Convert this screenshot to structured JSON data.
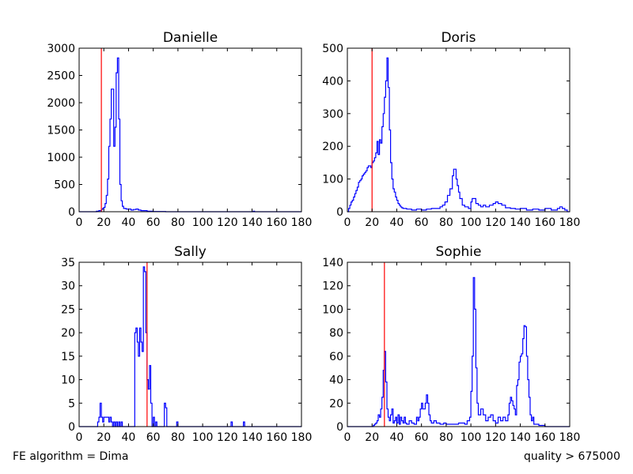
{
  "footer": {
    "left": "FE algorithm = Dima",
    "right": "quality > 675000"
  },
  "colors": {
    "histogram": "#0000ff",
    "marker": "#ff0000",
    "axes": "#000000"
  },
  "chart_data": [
    {
      "type": "histogram",
      "title": "Danielle",
      "xlim": [
        0,
        180
      ],
      "ylim": [
        0,
        3000
      ],
      "xticks": [
        0,
        20,
        40,
        60,
        80,
        100,
        120,
        140,
        160,
        180
      ],
      "yticks": [
        0,
        500,
        1000,
        1500,
        2000,
        2500,
        3000
      ],
      "bin_width": 1,
      "marker_x": 18,
      "points": [
        [
          0,
          0
        ],
        [
          12,
          0
        ],
        [
          14,
          10
        ],
        [
          16,
          20
        ],
        [
          18,
          40
        ],
        [
          19,
          60
        ],
        [
          20,
          80
        ],
        [
          21,
          150
        ],
        [
          22,
          300
        ],
        [
          23,
          600
        ],
        [
          24,
          1200
        ],
        [
          25,
          1700
        ],
        [
          26,
          2250
        ],
        [
          27,
          2250
        ],
        [
          28,
          1200
        ],
        [
          29,
          1550
        ],
        [
          30,
          2550
        ],
        [
          31,
          2820
        ],
        [
          32,
          1700
        ],
        [
          33,
          500
        ],
        [
          34,
          200
        ],
        [
          35,
          100
        ],
        [
          36,
          60
        ],
        [
          38,
          50
        ],
        [
          40,
          50
        ],
        [
          42,
          30
        ],
        [
          44,
          40
        ],
        [
          46,
          50
        ],
        [
          48,
          30
        ],
        [
          50,
          20
        ],
        [
          55,
          10
        ],
        [
          60,
          5
        ],
        [
          70,
          0
        ],
        [
          140,
          0
        ],
        [
          141,
          10
        ],
        [
          142,
          0
        ],
        [
          180,
          0
        ]
      ]
    },
    {
      "type": "histogram",
      "title": "Doris",
      "xlim": [
        0,
        180
      ],
      "ylim": [
        0,
        500
      ],
      "xticks": [
        0,
        20,
        40,
        60,
        80,
        100,
        120,
        140,
        160,
        180
      ],
      "yticks": [
        0,
        100,
        200,
        300,
        400,
        500
      ],
      "bin_width": 1,
      "marker_x": 20,
      "points": [
        [
          0,
          0
        ],
        [
          1,
          10
        ],
        [
          2,
          20
        ],
        [
          3,
          30
        ],
        [
          4,
          35
        ],
        [
          5,
          45
        ],
        [
          6,
          55
        ],
        [
          7,
          65
        ],
        [
          8,
          75
        ],
        [
          9,
          90
        ],
        [
          10,
          95
        ],
        [
          11,
          100
        ],
        [
          12,
          110
        ],
        [
          13,
          115
        ],
        [
          14,
          120
        ],
        [
          15,
          125
        ],
        [
          16,
          135
        ],
        [
          17,
          140
        ],
        [
          18,
          140
        ],
        [
          19,
          135
        ],
        [
          20,
          150
        ],
        [
          21,
          155
        ],
        [
          22,
          165
        ],
        [
          23,
          180
        ],
        [
          24,
          215
        ],
        [
          25,
          175
        ],
        [
          26,
          220
        ],
        [
          27,
          210
        ],
        [
          28,
          260
        ],
        [
          29,
          300
        ],
        [
          30,
          350
        ],
        [
          31,
          400
        ],
        [
          32,
          470
        ],
        [
          33,
          380
        ],
        [
          34,
          250
        ],
        [
          35,
          150
        ],
        [
          36,
          100
        ],
        [
          37,
          70
        ],
        [
          38,
          60
        ],
        [
          39,
          45
        ],
        [
          40,
          35
        ],
        [
          41,
          25
        ],
        [
          42,
          20
        ],
        [
          43,
          15
        ],
        [
          44,
          12
        ],
        [
          45,
          10
        ],
        [
          48,
          8
        ],
        [
          52,
          5
        ],
        [
          56,
          8
        ],
        [
          60,
          5
        ],
        [
          64,
          8
        ],
        [
          68,
          10
        ],
        [
          72,
          10
        ],
        [
          75,
          15
        ],
        [
          77,
          20
        ],
        [
          79,
          30
        ],
        [
          81,
          50
        ],
        [
          83,
          70
        ],
        [
          85,
          110
        ],
        [
          86,
          130
        ],
        [
          87,
          130
        ],
        [
          88,
          100
        ],
        [
          89,
          80
        ],
        [
          90,
          60
        ],
        [
          91,
          40
        ],
        [
          93,
          20
        ],
        [
          95,
          15
        ],
        [
          98,
          10
        ],
        [
          100,
          30
        ],
        [
          101,
          40
        ],
        [
          103,
          40
        ],
        [
          104,
          25
        ],
        [
          106,
          20
        ],
        [
          108,
          15
        ],
        [
          110,
          20
        ],
        [
          112,
          15
        ],
        [
          115,
          20
        ],
        [
          118,
          25
        ],
        [
          120,
          30
        ],
        [
          122,
          25
        ],
        [
          125,
          20
        ],
        [
          128,
          12
        ],
        [
          132,
          10
        ],
        [
          136,
          8
        ],
        [
          140,
          10
        ],
        [
          145,
          5
        ],
        [
          150,
          8
        ],
        [
          155,
          5
        ],
        [
          160,
          10
        ],
        [
          165,
          5
        ],
        [
          170,
          10
        ],
        [
          172,
          15
        ],
        [
          174,
          10
        ],
        [
          176,
          5
        ],
        [
          178,
          0
        ],
        [
          180,
          0
        ]
      ]
    },
    {
      "type": "histogram",
      "title": "Sally",
      "xlim": [
        0,
        180
      ],
      "ylim": [
        0,
        35
      ],
      "xticks": [
        0,
        20,
        40,
        60,
        80,
        100,
        120,
        140,
        160,
        180
      ],
      "yticks": [
        0,
        5,
        10,
        15,
        20,
        25,
        30,
        35
      ],
      "bin_width": 1,
      "marker_x": 55,
      "points": [
        [
          0,
          0
        ],
        [
          14,
          0
        ],
        [
          15,
          1
        ],
        [
          16,
          2
        ],
        [
          17,
          5
        ],
        [
          18,
          2
        ],
        [
          19,
          1
        ],
        [
          20,
          2
        ],
        [
          21,
          2
        ],
        [
          23,
          2
        ],
        [
          24,
          1
        ],
        [
          25,
          2
        ],
        [
          26,
          1
        ],
        [
          27,
          0
        ],
        [
          28,
          1
        ],
        [
          29,
          0
        ],
        [
          30,
          1
        ],
        [
          31,
          0
        ],
        [
          32,
          1
        ],
        [
          33,
          0
        ],
        [
          34,
          1
        ],
        [
          35,
          0
        ],
        [
          44,
          0
        ],
        [
          45,
          20
        ],
        [
          46,
          21
        ],
        [
          47,
          18
        ],
        [
          48,
          15
        ],
        [
          49,
          21
        ],
        [
          50,
          18
        ],
        [
          51,
          16
        ],
        [
          52,
          34
        ],
        [
          53,
          33
        ],
        [
          54,
          20
        ],
        [
          55,
          10
        ],
        [
          56,
          8
        ],
        [
          57,
          13
        ],
        [
          58,
          5
        ],
        [
          59,
          0
        ],
        [
          60,
          2
        ],
        [
          61,
          0
        ],
        [
          62,
          1
        ],
        [
          63,
          0
        ],
        [
          68,
          0
        ],
        [
          69,
          5
        ],
        [
          70,
          4
        ],
        [
          71,
          0
        ],
        [
          78,
          0
        ],
        [
          79,
          1
        ],
        [
          80,
          0
        ],
        [
          122,
          0
        ],
        [
          123,
          1
        ],
        [
          124,
          0
        ],
        [
          132,
          0
        ],
        [
          133,
          1
        ],
        [
          134,
          0
        ],
        [
          180,
          0
        ]
      ]
    },
    {
      "type": "histogram",
      "title": "Sophie",
      "xlim": [
        0,
        180
      ],
      "ylim": [
        0,
        140
      ],
      "xticks": [
        0,
        20,
        40,
        60,
        80,
        100,
        120,
        140,
        160,
        180
      ],
      "yticks": [
        0,
        20,
        40,
        60,
        80,
        100,
        120,
        140
      ],
      "bin_width": 1,
      "marker_x": 30,
      "points": [
        [
          0,
          0
        ],
        [
          20,
          0
        ],
        [
          21,
          1
        ],
        [
          22,
          2
        ],
        [
          23,
          3
        ],
        [
          24,
          5
        ],
        [
          25,
          10
        ],
        [
          26,
          8
        ],
        [
          27,
          15
        ],
        [
          28,
          25
        ],
        [
          29,
          48
        ],
        [
          30,
          64
        ],
        [
          31,
          38
        ],
        [
          32,
          15
        ],
        [
          33,
          8
        ],
        [
          34,
          5
        ],
        [
          35,
          10
        ],
        [
          36,
          15
        ],
        [
          37,
          3
        ],
        [
          38,
          5
        ],
        [
          39,
          8
        ],
        [
          40,
          3
        ],
        [
          41,
          10
        ],
        [
          42,
          2
        ],
        [
          43,
          8
        ],
        [
          44,
          5
        ],
        [
          45,
          3
        ],
        [
          46,
          8
        ],
        [
          47,
          3
        ],
        [
          48,
          2
        ],
        [
          50,
          5
        ],
        [
          52,
          3
        ],
        [
          54,
          2
        ],
        [
          56,
          8
        ],
        [
          57,
          5
        ],
        [
          58,
          8
        ],
        [
          59,
          15
        ],
        [
          60,
          20
        ],
        [
          61,
          15
        ],
        [
          62,
          15
        ],
        [
          63,
          20
        ],
        [
          64,
          27
        ],
        [
          65,
          20
        ],
        [
          66,
          10
        ],
        [
          67,
          5
        ],
        [
          68,
          3
        ],
        [
          70,
          5
        ],
        [
          72,
          3
        ],
        [
          75,
          2
        ],
        [
          78,
          3
        ],
        [
          80,
          2
        ],
        [
          85,
          2
        ],
        [
          90,
          3
        ],
        [
          95,
          2
        ],
        [
          97,
          5
        ],
        [
          99,
          8
        ],
        [
          100,
          30
        ],
        [
          101,
          60
        ],
        [
          102,
          127
        ],
        [
          103,
          100
        ],
        [
          104,
          50
        ],
        [
          105,
          20
        ],
        [
          106,
          10
        ],
        [
          108,
          15
        ],
        [
          110,
          10
        ],
        [
          112,
          5
        ],
        [
          114,
          8
        ],
        [
          116,
          10
        ],
        [
          118,
          5
        ],
        [
          120,
          3
        ],
        [
          122,
          8
        ],
        [
          124,
          5
        ],
        [
          126,
          8
        ],
        [
          128,
          5
        ],
        [
          130,
          10
        ],
        [
          131,
          20
        ],
        [
          132,
          25
        ],
        [
          133,
          22
        ],
        [
          134,
          18
        ],
        [
          135,
          15
        ],
        [
          136,
          10
        ],
        [
          137,
          35
        ],
        [
          138,
          40
        ],
        [
          139,
          55
        ],
        [
          140,
          60
        ],
        [
          141,
          62
        ],
        [
          142,
          75
        ],
        [
          143,
          86
        ],
        [
          144,
          85
        ],
        [
          145,
          60
        ],
        [
          146,
          40
        ],
        [
          147,
          25
        ],
        [
          148,
          10
        ],
        [
          149,
          5
        ],
        [
          150,
          8
        ],
        [
          151,
          2
        ],
        [
          155,
          1
        ],
        [
          160,
          0
        ],
        [
          180,
          0
        ]
      ]
    }
  ]
}
